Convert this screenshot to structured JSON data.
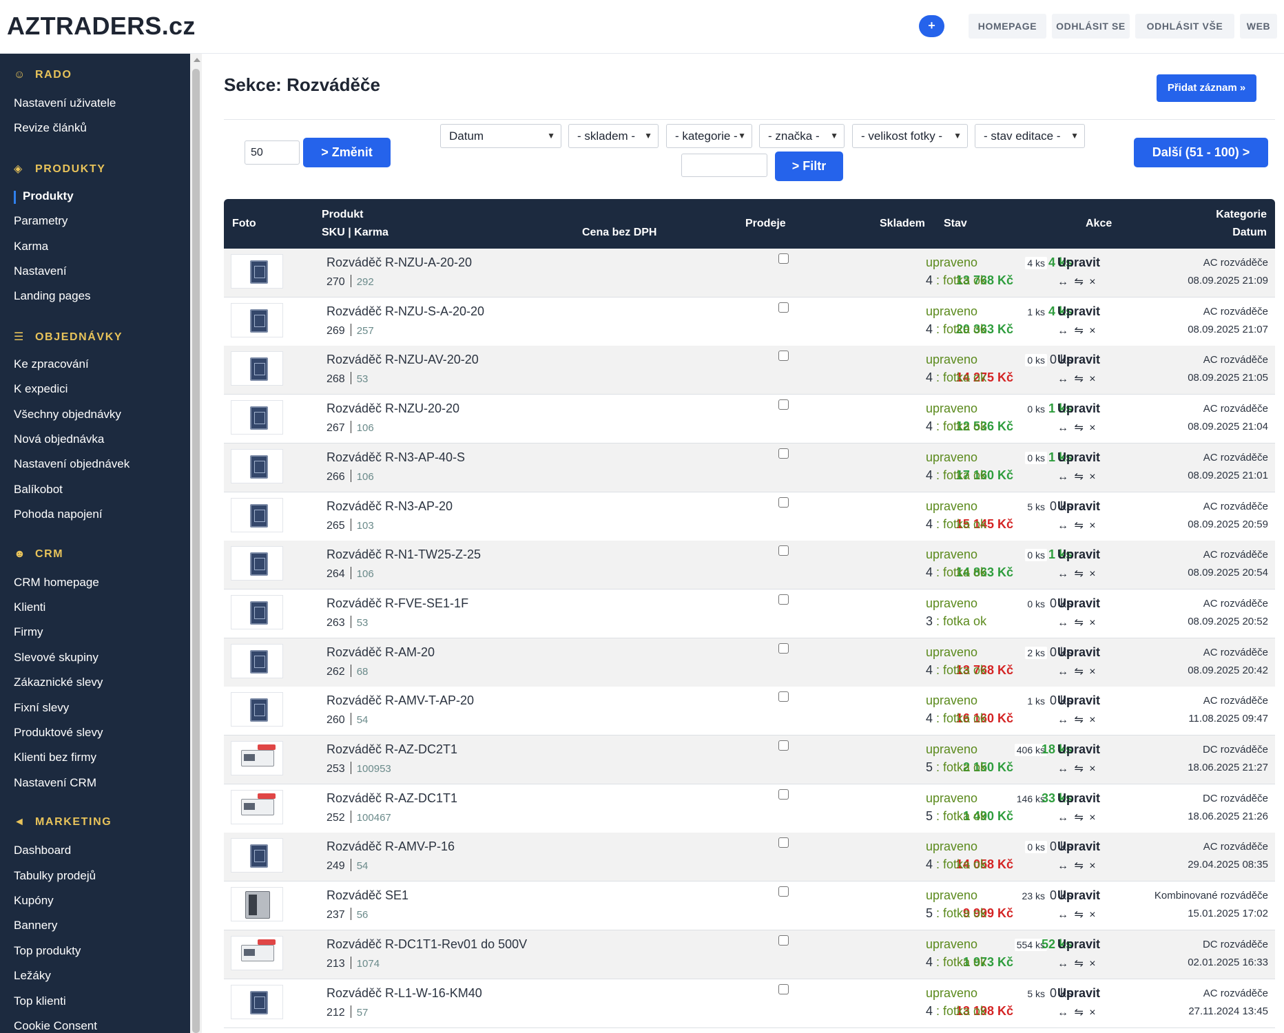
{
  "app": {
    "logo": "AZTRADERS.cz",
    "plus": "+"
  },
  "topnav": [
    "HOMEPAGE",
    "ODHLÁSIT SE",
    "ODHLÁSIT VŠE",
    "WEB"
  ],
  "sidebar": {
    "sections": [
      {
        "title": "RADO",
        "icon": "user-icon",
        "items": [
          "Nastavení uživatele",
          "Revize článků"
        ]
      },
      {
        "title": "PRODUKTY",
        "icon": "cube-icon",
        "items": [
          "Produkty",
          "Parametry",
          "Karma",
          "Nastavení",
          "Landing pages"
        ]
      },
      {
        "title": "OBJEDNÁVKY",
        "icon": "document-icon",
        "items": [
          "Ke zpracování",
          "K expedici",
          "Všechny objednávky",
          "Nová objednávka",
          "Nastavení objednávek",
          "Balíkobot",
          "Pohoda napojení"
        ]
      },
      {
        "title": "CRM",
        "icon": "users-icon",
        "items": [
          "CRM homepage",
          "Klienti",
          "Firmy",
          "Slevové skupiny",
          "Zákaznické slevy",
          "Fixní slevy",
          "Produktové slevy",
          "Klienti bez firmy",
          "Nastavení CRM"
        ]
      },
      {
        "title": "MARKETING",
        "icon": "megaphone-icon",
        "items": [
          "Dashboard",
          "Tabulky prodejů",
          "Kupóny",
          "Bannery",
          "Top produkty",
          "Ležáky",
          "Top klienti",
          "Cookie Consent"
        ]
      }
    ],
    "active_item": "Produkty"
  },
  "page": {
    "title": "Sekce: Rozváděče",
    "add_button": "Přidat záznam »"
  },
  "filters": {
    "per_page_value": "50",
    "change_button": "> Změnit",
    "selects": [
      "Datum",
      "- skladem -",
      "- kategorie -",
      "- značka -",
      "- velikost fotky -",
      "- stav editace -"
    ],
    "search_value": "",
    "filter_button": "> Filtr",
    "next_button": "Další (51 - 100) >"
  },
  "table": {
    "headers": {
      "foto": "Foto",
      "produkt": "Produkt",
      "sku_karma": "SKU | Karma",
      "cena": "Cena bez DPH",
      "prodeje": "Prodeje",
      "skladem": "Skladem",
      "stav": "Stav",
      "akce": "Akce",
      "kategorie": "Kategorie",
      "datum": "Datum"
    },
    "edit_label": "Upravit",
    "actions_label": "↔ ⇋ ×",
    "rows": [
      {
        "name": "Rozváděč R-NZU-A-20-20",
        "sku": "270",
        "karma": "292",
        "price": "13 768 Kč",
        "price_color": "green",
        "sales": "4 ks",
        "stock": "4 ks",
        "stock_pos": true,
        "state": "upraveno",
        "photos_n": "4",
        "photos": "fotka ok",
        "category": "AC rozváděče",
        "date": "08.09.2025 21:09",
        "thumb": "blue"
      },
      {
        "name": "Rozváděč R-NZU-S-A-20-20",
        "sku": "269",
        "karma": "257",
        "price": "20 363 Kč",
        "price_color": "green",
        "sales": "1 ks",
        "stock": "4 ks",
        "stock_pos": true,
        "state": "upraveno",
        "photos_n": "4",
        "photos": "fotka ok",
        "category": "AC rozváděče",
        "date": "08.09.2025 21:07",
        "thumb": "blue"
      },
      {
        "name": "Rozváděč R-NZU-AV-20-20",
        "sku": "268",
        "karma": "53",
        "price": "14 275 Kč",
        "price_color": "red",
        "sales": "0 ks",
        "stock": "0 ks",
        "stock_pos": false,
        "state": "upraveno",
        "photos_n": "4",
        "photos": "fotka ok",
        "category": "AC rozváděče",
        "date": "08.09.2025 21:05",
        "thumb": "blue"
      },
      {
        "name": "Rozváděč R-NZU-20-20",
        "sku": "267",
        "karma": "106",
        "price": "12 536 Kč",
        "price_color": "green",
        "sales": "0 ks",
        "stock": "1 ks",
        "stock_pos": true,
        "state": "upraveno",
        "photos_n": "4",
        "photos": "fotka ok",
        "category": "AC rozváděče",
        "date": "08.09.2025 21:04",
        "thumb": "blue"
      },
      {
        "name": "Rozváděč R-N3-AP-40-S",
        "sku": "266",
        "karma": "106",
        "price": "17 160 Kč",
        "price_color": "green",
        "sales": "0 ks",
        "stock": "1 ks",
        "stock_pos": true,
        "state": "upraveno",
        "photos_n": "4",
        "photos": "fotka ok",
        "category": "AC rozváděče",
        "date": "08.09.2025 21:01",
        "thumb": "blue"
      },
      {
        "name": "Rozváděč R-N3-AP-20",
        "sku": "265",
        "karma": "103",
        "price": "15 145 Kč",
        "price_color": "red",
        "sales": "5 ks",
        "stock": "0 ks",
        "stock_pos": false,
        "state": "upraveno",
        "photos_n": "4",
        "photos": "fotka ok",
        "category": "AC rozváděče",
        "date": "08.09.2025 20:59",
        "thumb": "blue"
      },
      {
        "name": "Rozváděč R-N1-TW25-Z-25",
        "sku": "264",
        "karma": "106",
        "price": "14 863 Kč",
        "price_color": "green",
        "sales": "0 ks",
        "stock": "1 ks",
        "stock_pos": true,
        "state": "upraveno",
        "photos_n": "4",
        "photos": "fotka ok",
        "category": "AC rozváděče",
        "date": "08.09.2025 20:54",
        "thumb": "blue"
      },
      {
        "name": "Rozváděč R-FVE-SE1-1F",
        "sku": "263",
        "karma": "53",
        "price": "",
        "price_color": "green",
        "sales": "0 ks",
        "stock": "0 ks",
        "stock_pos": false,
        "state": "upraveno",
        "photos_n": "3",
        "photos": "fotka ok",
        "category": "AC rozváděče",
        "date": "08.09.2025 20:52",
        "thumb": "blue"
      },
      {
        "name": "Rozváděč R-AM-20",
        "sku": "262",
        "karma": "68",
        "price": "13 768 Kč",
        "price_color": "red",
        "sales": "2 ks",
        "stock": "0 ks",
        "stock_pos": false,
        "state": "upraveno",
        "photos_n": "4",
        "photos": "fotka ok",
        "category": "AC rozváděče",
        "date": "08.09.2025 20:42",
        "thumb": "blue"
      },
      {
        "name": "Rozváděč R-AMV-T-AP-20",
        "sku": "260",
        "karma": "54",
        "price": "16 160 Kč",
        "price_color": "red",
        "sales": "1 ks",
        "stock": "0 ks",
        "stock_pos": false,
        "state": "upraveno",
        "photos_n": "4",
        "photos": "fotka ok",
        "category": "AC rozváděče",
        "date": "11.08.2025 09:47",
        "thumb": "blue"
      },
      {
        "name": "Rozváděč R-AZ-DC2T1",
        "sku": "253",
        "karma": "100953",
        "price": "2 150 Kč",
        "price_color": "green",
        "sales": "406 ks",
        "stock": "18 ks",
        "stock_pos": true,
        "state": "upraveno",
        "photos_n": "5",
        "photos": "fotka ok",
        "category": "DC rozváděče",
        "date": "18.06.2025 21:27",
        "thumb": "white"
      },
      {
        "name": "Rozváděč R-AZ-DC1T1",
        "sku": "252",
        "karma": "100467",
        "price": "1 490 Kč",
        "price_color": "green",
        "sales": "146 ks",
        "stock": "33 ks",
        "stock_pos": true,
        "state": "upraveno",
        "photos_n": "5",
        "photos": "fotka ok",
        "category": "DC rozváděče",
        "date": "18.06.2025 21:26",
        "thumb": "white"
      },
      {
        "name": "Rozváděč R-AMV-P-16",
        "sku": "249",
        "karma": "54",
        "price": "14 058 Kč",
        "price_color": "red",
        "sales": "0 ks",
        "stock": "0 ks",
        "stock_pos": false,
        "state": "upraveno",
        "photos_n": "4",
        "photos": "fotka ok",
        "category": "AC rozváděče",
        "date": "29.04.2025 08:35",
        "thumb": "blue"
      },
      {
        "name": "Rozváděč SE1",
        "sku": "237",
        "karma": "56",
        "price": "9 999 Kč",
        "price_color": "red",
        "sales": "23 ks",
        "stock": "0 ks",
        "stock_pos": false,
        "state": "upraveno",
        "photos_n": "5",
        "photos": "fotka ok",
        "category": "Kombinované rozváděče",
        "date": "15.01.2025 17:02",
        "thumb": "grey"
      },
      {
        "name": "Rozváděč R-DC1T1-Rev01 do 500V",
        "sku": "213",
        "karma": "1074",
        "price": "1 973 Kč",
        "price_color": "green",
        "sales": "554 ks",
        "stock": "52 ks",
        "stock_pos": true,
        "state": "upraveno",
        "photos_n": "4",
        "photos": "fotka ok",
        "category": "DC rozváděče",
        "date": "02.01.2025 16:33",
        "thumb": "white"
      },
      {
        "name": "Rozváděč R-L1-W-16-KM40",
        "sku": "212",
        "karma": "57",
        "price": "13 198 Kč",
        "price_color": "red",
        "sales": "5 ks",
        "stock": "0 ks",
        "stock_pos": false,
        "state": "upraveno",
        "photos_n": "4",
        "photos": "fotka ok",
        "category": "AC rozváděče",
        "date": "27.11.2024 13:45",
        "thumb": "blue"
      }
    ]
  }
}
